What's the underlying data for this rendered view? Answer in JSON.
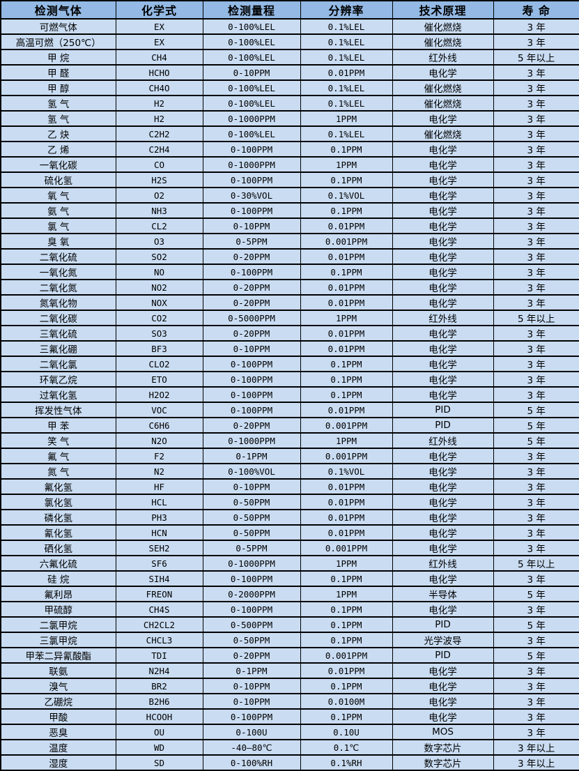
{
  "table": {
    "colors": {
      "header_bg": "#93B9E4",
      "row_bg": "#C9DCF2",
      "border": "#000000",
      "text": "#000000"
    },
    "headers": [
      "检测气体",
      "化学式",
      "检测量程",
      "分辨率",
      "技术原理",
      "寿 命"
    ],
    "rows": [
      [
        "可燃气体",
        "EX",
        "0-100%LEL",
        "0.1%LEL",
        "催化燃烧",
        "3 年"
      ],
      [
        "高温可燃（250℃）",
        "EX",
        "0-100%LEL",
        "0.1%LEL",
        "催化燃烧",
        "3 年"
      ],
      [
        "甲 烷",
        "CH4",
        "0-100%LEL",
        "0.1%LEL",
        "红外线",
        "5 年以上"
      ],
      [
        "甲 醛",
        "HCHO",
        "0-10PPM",
        "0.01PPM",
        "电化学",
        "3 年"
      ],
      [
        "甲 醇",
        "CH4O",
        "0-100%LEL",
        "0.1%LEL",
        "催化燃烧",
        "3 年"
      ],
      [
        "氢 气",
        "H2",
        "0-100%LEL",
        "0.1%LEL",
        "催化燃烧",
        "3 年"
      ],
      [
        "氢 气",
        "H2",
        "0-1000PPM",
        "1PPM",
        "电化学",
        "3 年"
      ],
      [
        "乙 炔",
        "C2H2",
        "0-100%LEL",
        "0.1%LEL",
        "催化燃烧",
        "3 年"
      ],
      [
        "乙 烯",
        "C2H4",
        "0-100PPM",
        "0.1PPM",
        "电化学",
        "3 年"
      ],
      [
        "一氧化碳",
        "CO",
        "0-1000PPM",
        "1PPM",
        "电化学",
        "3 年"
      ],
      [
        "硫化氢",
        "H2S",
        "0-100PPM",
        "0.1PPM",
        "电化学",
        "3 年"
      ],
      [
        "氧 气",
        "O2",
        "0-30%VOL",
        "0.1%VOL",
        "电化学",
        "3 年"
      ],
      [
        "氨 气",
        "NH3",
        "0-100PPM",
        "0.1PPM",
        "电化学",
        "3 年"
      ],
      [
        "氯 气",
        "CL2",
        "0-10PPM",
        "0.01PPM",
        "电化学",
        "3 年"
      ],
      [
        "臭 氧",
        "O3",
        "0-5PPM",
        "0.001PPM",
        "电化学",
        "3 年"
      ],
      [
        "二氧化硫",
        "SO2",
        "0-20PPM",
        "0.01PPM",
        "电化学",
        "3 年"
      ],
      [
        "一氧化氮",
        "NO",
        "0-100PPM",
        "0.1PPM",
        "电化学",
        "3 年"
      ],
      [
        "二氧化氮",
        "NO2",
        "0-20PPM",
        "0.01PPM",
        "电化学",
        "3 年"
      ],
      [
        "氮氧化物",
        "NOX",
        "0-20PPM",
        "0.01PPM",
        "电化学",
        "3 年"
      ],
      [
        "二氧化碳",
        "CO2",
        "0-5000PPM",
        "1PPM",
        "红外线",
        "5 年以上"
      ],
      [
        "三氧化硫",
        "SO3",
        "0-20PPM",
        "0.01PPM",
        "电化学",
        "3 年"
      ],
      [
        "三氟化硼",
        "BF3",
        "0-10PPM",
        "0.01PPM",
        "电化学",
        "3 年"
      ],
      [
        "二氧化氯",
        "CLO2",
        "0-100PPM",
        "0.1PPM",
        "电化学",
        "3 年"
      ],
      [
        "环氧乙烷",
        "ETO",
        "0-100PPM",
        "0.1PPM",
        "电化学",
        "3 年"
      ],
      [
        "过氧化氢",
        "H2O2",
        "0-100PPM",
        "0.1PPM",
        "电化学",
        "3 年"
      ],
      [
        "挥发性气体",
        "VOC",
        "0-100PPM",
        "0.01PPM",
        "PID",
        "5 年"
      ],
      [
        "甲 苯",
        "C6H6",
        "0-20PPM",
        "0.001PPM",
        "PID",
        "5 年"
      ],
      [
        "笑 气",
        "N2O",
        "0-1000PPM",
        "1PPM",
        "红外线",
        "5 年"
      ],
      [
        "氟 气",
        "F2",
        "0-1PPM",
        "0.001PPM",
        "电化学",
        "3 年"
      ],
      [
        "氮 气",
        "N2",
        "0-100%VOL",
        "0.1%VOL",
        "电化学",
        "3 年"
      ],
      [
        "氟化氢",
        "HF",
        "0-10PPM",
        "0.01PPM",
        "电化学",
        "3 年"
      ],
      [
        "氯化氢",
        "HCL",
        "0-50PPM",
        "0.01PPM",
        "电化学",
        "3 年"
      ],
      [
        "磷化氢",
        "PH3",
        "0-50PPM",
        "0.01PPM",
        "电化学",
        "3 年"
      ],
      [
        "氰化氢",
        "HCN",
        "0-50PPM",
        "0.01PPM",
        "电化学",
        "3 年"
      ],
      [
        "硒化氢",
        "SEH2",
        "0-5PPM",
        "0.001PPM",
        "电化学",
        "3 年"
      ],
      [
        "六氟化硫",
        "SF6",
        "0-1000PPM",
        "1PPM",
        "红外线",
        "5 年以上"
      ],
      [
        "硅 烷",
        "SIH4",
        "0-100PPM",
        "0.1PPM",
        "电化学",
        "3 年"
      ],
      [
        "氟利昂",
        "FREON",
        "0-2000PPM",
        "1PPM",
        "半导体",
        "5 年"
      ],
      [
        "甲硫醇",
        "CH4S",
        "0-100PPM",
        "0.1PPM",
        "电化学",
        "3 年"
      ],
      [
        "二氯甲烷",
        "CH2CL2",
        "0-500PPM",
        "0.1PPM",
        "PID",
        "5 年"
      ],
      [
        "三氯甲烷",
        "CHCL3",
        "0-50PPM",
        "0.1PPM",
        "光学波导",
        "3 年"
      ],
      [
        "甲苯二异氰酸酯",
        "TDI",
        "0-20PPM",
        "0.001PPM",
        "PID",
        "5 年"
      ],
      [
        "联氨",
        "N2H4",
        "0-1PPM",
        "0.01PPM",
        "电化学",
        "3 年"
      ],
      [
        "溴气",
        "BR2",
        "0-10PPM",
        "0.1PPM",
        "电化学",
        "3 年"
      ],
      [
        "乙硼烷",
        "B2H6",
        "0-10PPM",
        "0.0100M",
        "电化学",
        "3 年"
      ],
      [
        "甲酸",
        "HCOOH",
        "0-100PPM",
        "0.1PPM",
        "电化学",
        "3 年"
      ],
      [
        "恶臭",
        "OU",
        "0-100U",
        "0.10U",
        "MOS",
        "3 年"
      ],
      [
        "温度",
        "WD",
        "-40—80℃",
        "0.1℃",
        "数字芯片",
        "3 年以上"
      ],
      [
        "湿度",
        "SD",
        "0-100%RH",
        "0.1%RH",
        "数字芯片",
        "3 年以上"
      ]
    ]
  }
}
